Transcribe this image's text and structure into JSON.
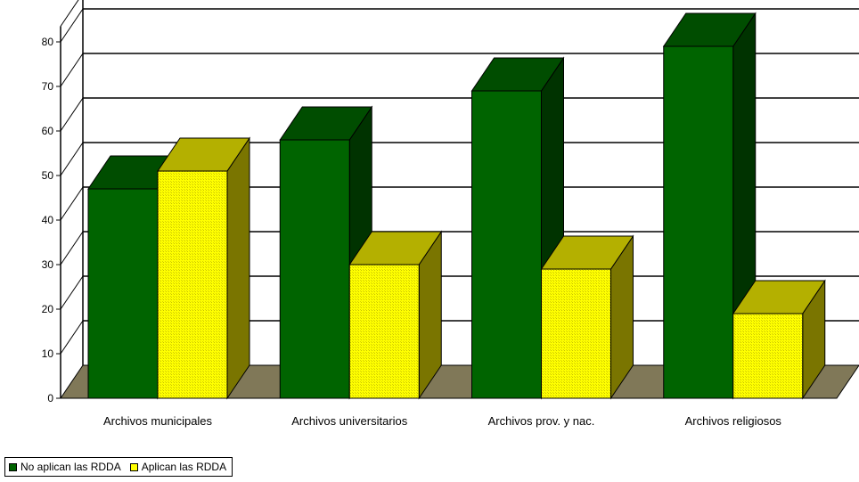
{
  "chart_data": {
    "type": "bar",
    "title": "",
    "xlabel": "",
    "ylabel": "",
    "categories": [
      "Archivos municipales",
      "Archivos universitarios",
      "Archivos prov. y nac.",
      "Archivos religiosos"
    ],
    "series": [
      {
        "name": "No aplican las RDDA",
        "values": [
          47,
          58,
          69,
          79
        ],
        "color": "#006400",
        "top_color": "#004d00",
        "side_color": "#003300"
      },
      {
        "name": "Aplican las RDDA",
        "values": [
          51,
          30,
          29,
          19
        ],
        "color": "#ffff00",
        "top_color": "#b4b000",
        "side_color": "#7a7500"
      }
    ],
    "ylim": [
      0,
      80
    ],
    "yticks": [
      0,
      10,
      20,
      30,
      40,
      50,
      60,
      70,
      80
    ],
    "grid": true,
    "legend_position": "bottom-left",
    "floor_color": "#807858",
    "three_d": true
  }
}
